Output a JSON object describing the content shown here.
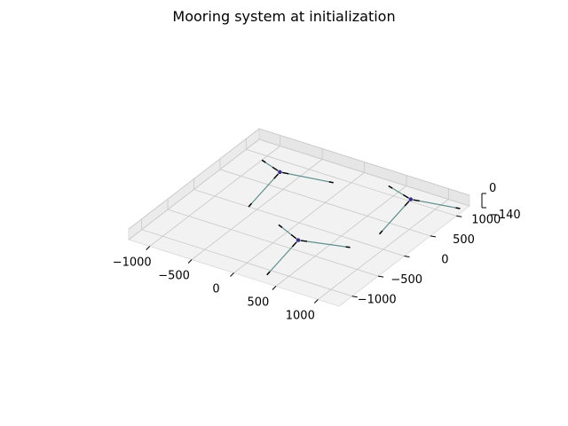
{
  "chart_data": {
    "type": "line3d",
    "title": "Mooring system at initialization",
    "xlabel": "",
    "ylabel": "",
    "zlabel": "",
    "xlim": [
      -1250,
      1250
    ],
    "ylim": [
      -1250,
      1250
    ],
    "zlim": [
      -140,
      0
    ],
    "x_ticks": [
      -1000,
      -500,
      0,
      500,
      1000
    ],
    "y_ticks": [
      -1000,
      -500,
      0,
      500,
      1000
    ],
    "z_ticks": [
      -140,
      0
    ],
    "x_tick_labels": [
      "−1000",
      "−500",
      "0",
      "500",
      "1000"
    ],
    "y_tick_labels": [
      "−1000",
      "−500",
      "0",
      "500",
      "1000"
    ],
    "z_tick_labels": [
      "−140",
      "0"
    ],
    "line_color": "#5f8f8c",
    "platforms": [
      {
        "center": [
          -600,
          600,
          0
        ],
        "anchors": [
          [
            -1000,
            900,
            -140
          ],
          [
            -150,
            900,
            -140
          ],
          [
            -600,
            0,
            -140
          ]
        ]
      },
      {
        "center": [
          300,
          -500,
          0
        ],
        "anchors": [
          [
            -150,
            -150,
            -140
          ],
          [
            700,
            -150,
            -140
          ],
          [
            300,
            -1100,
            -140
          ]
        ]
      },
      {
        "center": [
          800,
          850,
          0
        ],
        "anchors": [
          [
            350,
            1150,
            -140
          ],
          [
            1200,
            1150,
            -140
          ],
          [
            800,
            250,
            -140
          ]
        ]
      }
    ]
  }
}
